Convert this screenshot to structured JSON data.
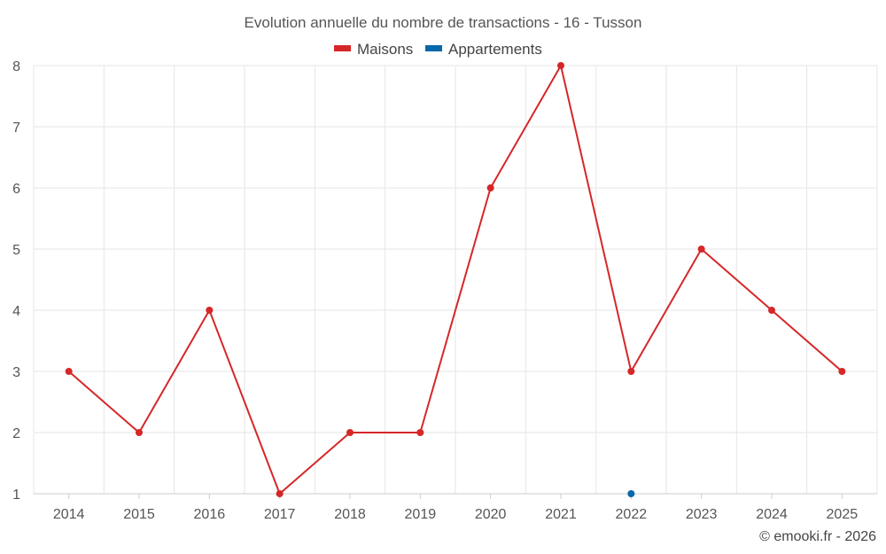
{
  "chart_data": {
    "type": "line",
    "title": "Evolution annuelle du nombre de transactions - 16 - Tusson",
    "categories": [
      "2014",
      "2015",
      "2016",
      "2017",
      "2018",
      "2019",
      "2020",
      "2021",
      "2022",
      "2023",
      "2024",
      "2025"
    ],
    "series": [
      {
        "name": "Maisons",
        "color": "#d62728",
        "values": [
          3,
          2,
          4,
          1,
          2,
          2,
          6,
          8,
          3,
          5,
          4,
          3
        ]
      },
      {
        "name": "Appartements",
        "color": "#0868ac",
        "values": [
          null,
          null,
          null,
          null,
          null,
          null,
          null,
          null,
          1,
          null,
          null,
          null
        ]
      }
    ],
    "ylim": [
      1,
      8
    ],
    "yticks": [
      "1",
      "2",
      "3",
      "4",
      "5",
      "6",
      "7",
      "8"
    ],
    "xlabel": "",
    "ylabel": "",
    "grid": true,
    "legend": "top-center"
  },
  "credit": "© emooki.fr - 2026"
}
